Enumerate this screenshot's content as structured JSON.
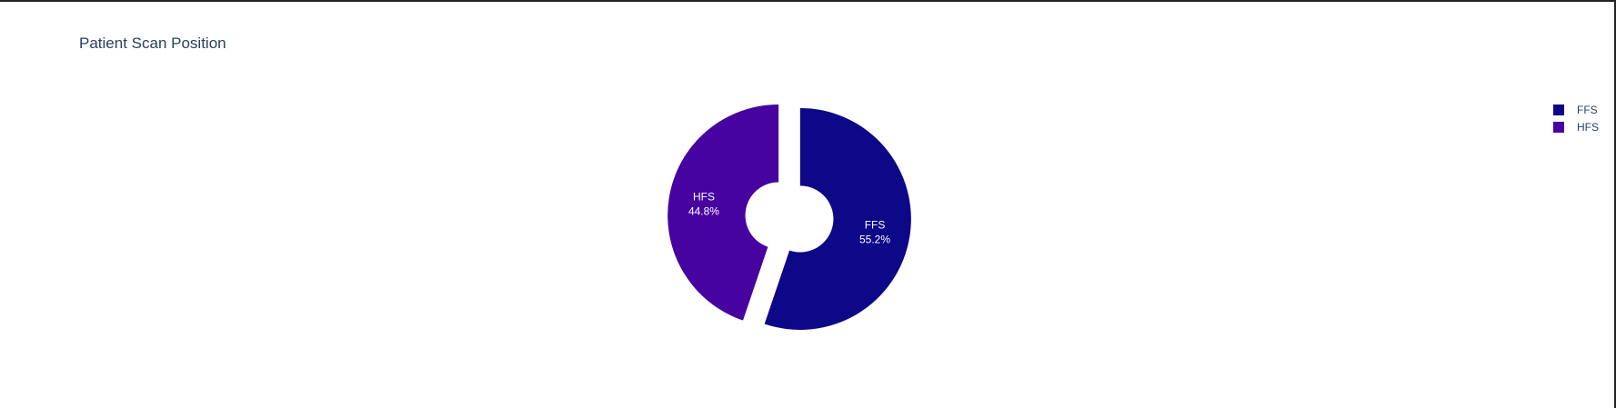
{
  "chart_data": {
    "type": "pie",
    "title": "Patient Scan Position",
    "hole": 0.3,
    "legend_position": "top-right",
    "slices": [
      {
        "label": "FFS",
        "percent": 55.2,
        "percent_label": "55.2%",
        "color": "#0d0887",
        "pulled": true
      },
      {
        "label": "HFS",
        "percent": 44.8,
        "percent_label": "44.8%",
        "color": "#46039f",
        "pulled": true
      }
    ]
  }
}
